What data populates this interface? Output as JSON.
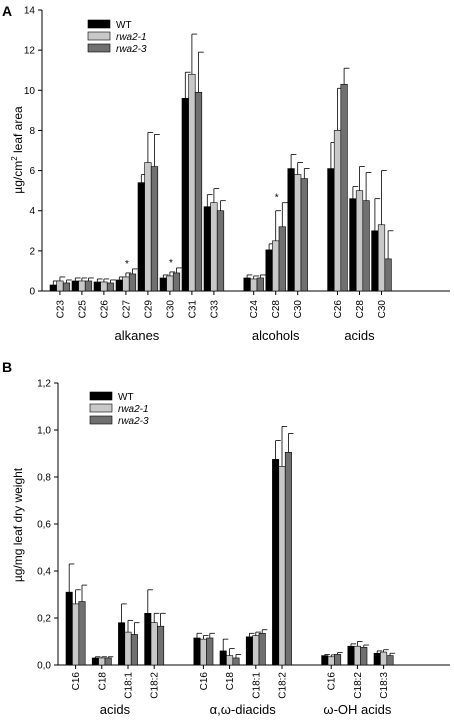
{
  "colors": {
    "WT": "#000000",
    "rwa2-1": "#c8c8c8",
    "rwa2-3": "#707070"
  },
  "chart_data": [
    {
      "panel": "A",
      "type": "bar",
      "ylabel_pre": "µg/cm",
      "ylabel_sup": "2",
      "ylabel_post": " leaf area",
      "ylim": [
        0,
        14
      ],
      "yticks": [
        "0",
        "2",
        "4",
        "6",
        "8",
        "10",
        "12",
        "14"
      ],
      "legend": [
        "WT",
        "rwa2-1",
        "rwa2-3"
      ],
      "groups": [
        {
          "label": "alkanes",
          "categories": [
            {
              "label": "C23",
              "values": [
                0.3,
                0.5,
                0.4
              ],
              "errors": [
                0.2,
                0.2,
                0.15
              ]
            },
            {
              "label": "C25",
              "values": [
                0.5,
                0.5,
                0.5
              ],
              "errors": [
                0.15,
                0.15,
                0.15
              ]
            },
            {
              "label": "C26",
              "values": [
                0.45,
                0.45,
                0.4
              ],
              "errors": [
                0.15,
                0.15,
                0.15
              ]
            },
            {
              "label": "C27",
              "values": [
                0.55,
                0.7,
                0.85
              ],
              "errors": [
                0.15,
                0.2,
                0.25
              ],
              "star": "*"
            },
            {
              "label": "C29",
              "values": [
                5.4,
                6.4,
                6.2
              ],
              "errors": [
                0.4,
                1.5,
                1.6
              ]
            },
            {
              "label": "C30",
              "values": [
                0.65,
                0.75,
                0.9
              ],
              "errors": [
                0.15,
                0.2,
                0.25
              ],
              "star": "*"
            },
            {
              "label": "C31",
              "values": [
                9.6,
                10.8,
                9.9
              ],
              "errors": [
                1.3,
                2.0,
                2.0
              ]
            },
            {
              "label": "C33",
              "values": [
                4.2,
                4.4,
                4.0
              ],
              "errors": [
                0.6,
                0.7,
                0.5
              ]
            }
          ]
        },
        {
          "label": "alcohols",
          "categories": [
            {
              "label": "C24",
              "values": [
                0.65,
                0.6,
                0.65
              ],
              "errors": [
                0.15,
                0.15,
                0.15
              ]
            },
            {
              "label": "C26",
              "values": [
                2.05,
                2.5,
                3.2
              ],
              "errors": [
                0.3,
                1.5,
                1.2
              ],
              "star": "*"
            },
            {
              "label": "C28",
              "values": [
                6.1,
                5.8,
                5.6
              ],
              "errors": [
                0.7,
                0.6,
                0.5
              ]
            }
          ]
        },
        {
          "label": "acids",
          "categories": [
            {
              "label": "C26",
              "values": [
                6.1,
                8.0,
                10.3
              ],
              "errors": [
                1.3,
                2.1,
                0.8
              ]
            },
            {
              "label": "C28",
              "values": [
                4.6,
                5.0,
                4.5
              ],
              "errors": [
                0.6,
                1.2,
                1.4
              ]
            },
            {
              "label": "C30",
              "values": [
                3.0,
                3.3,
                1.6
              ],
              "errors": [
                1.6,
                2.7,
                1.4
              ]
            }
          ]
        }
      ],
      "x_tick_labels": [
        "C23",
        "C25",
        "C26",
        "C27",
        "C29",
        "C30",
        "C31",
        "C33",
        "C24",
        "C28",
        "C30",
        "C26",
        "C28",
        "C30"
      ]
    },
    {
      "panel": "B",
      "type": "bar",
      "ylabel": "µg/mg leaf dry weight",
      "ylim": [
        0,
        1.2
      ],
      "yticks": [
        "0,0",
        "0,2",
        "0,4",
        "0,6",
        "0,8",
        "1,0",
        "1,2"
      ],
      "legend": [
        "WT",
        "rwa2-1",
        "rwa2-3"
      ],
      "groups": [
        {
          "label": "acids",
          "categories": [
            {
              "label": "C16",
              "values": [
                0.31,
                0.26,
                0.27
              ],
              "errors": [
                0.12,
                0.06,
                0.07
              ]
            },
            {
              "label": "C18",
              "values": [
                0.03,
                0.03,
                0.03
              ],
              "errors": [
                0.005,
                0.005,
                0.005
              ]
            },
            {
              "label": "C18:1",
              "values": [
                0.18,
                0.14,
                0.13
              ],
              "errors": [
                0.08,
                0.05,
                0.05
              ]
            },
            {
              "label": "C18:2",
              "values": [
                0.22,
                0.18,
                0.165
              ],
              "errors": [
                0.1,
                0.04,
                0.055
              ]
            }
          ]
        },
        {
          "label": "α,ω-diacids",
          "categories": [
            {
              "label": "C16",
              "values": [
                0.115,
                0.11,
                0.115
              ],
              "errors": [
                0.02,
                0.015,
                0.02
              ]
            },
            {
              "label": "C18",
              "values": [
                0.06,
                0.04,
                0.03
              ],
              "errors": [
                0.05,
                0.03,
                0.015
              ]
            },
            {
              "label": "C18:1",
              "values": [
                0.12,
                0.125,
                0.135
              ],
              "errors": [
                0.015,
                0.015,
                0.015
              ]
            },
            {
              "label": "C18:2",
              "values": [
                0.875,
                0.845,
                0.905
              ],
              "errors": [
                0.08,
                0.17,
                0.08
              ]
            }
          ]
        },
        {
          "label": "ω-OH acids",
          "categories": [
            {
              "label": "C16",
              "values": [
                0.04,
                0.035,
                0.045
              ],
              "errors": [
                0.005,
                0.008,
                0.008
              ]
            },
            {
              "label": "C18:2",
              "values": [
                0.08,
                0.08,
                0.075
              ],
              "errors": [
                0.01,
                0.02,
                0.01
              ]
            },
            {
              "label": "C18:3",
              "values": [
                0.05,
                0.055,
                0.04
              ],
              "errors": [
                0.01,
                0.01,
                0.01
              ]
            }
          ]
        }
      ],
      "x_tick_labels": [
        "C16",
        "C18",
        "C18:1",
        "C18:2",
        "C16",
        "C18",
        "C18:1",
        "C18:2",
        "C16",
        "C18:2",
        "C18:3"
      ]
    }
  ]
}
